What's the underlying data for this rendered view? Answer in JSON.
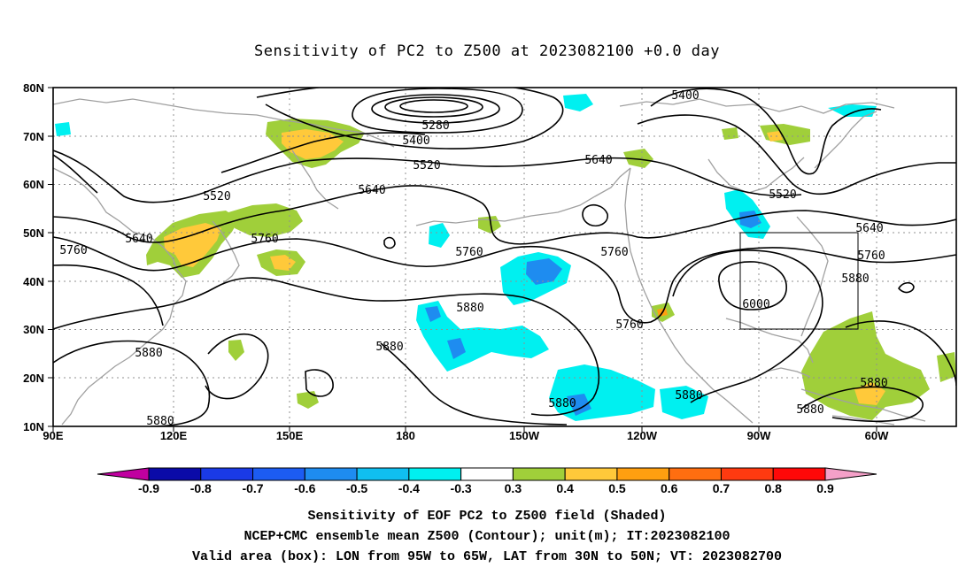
{
  "title": "Sensitivity of PC2 to Z500 at 2023082100 +0.0 day",
  "map": {
    "lat_labels": [
      "80N",
      "70N",
      "60N",
      "50N",
      "40N",
      "30N",
      "20N",
      "10N"
    ],
    "lon_labels": [
      "90E",
      "120E",
      "150E",
      "180",
      "150W",
      "120W",
      "90W",
      "60W"
    ],
    "lon_range": [
      "90E",
      "35W"
    ],
    "lat_range": [
      "10N",
      "80N"
    ],
    "gridlines": true,
    "contour_color": "#000000",
    "coastline_color": "#a0a0a0",
    "contour_labels": [
      "5400",
      "5280",
      "5400",
      "5520",
      "5640",
      "5520",
      "5520",
      "5640",
      "5640",
      "5760",
      "5760",
      "5760",
      "5760",
      "5640",
      "5760",
      "5880",
      "6000",
      "5880",
      "5880",
      "5760",
      "5880",
      "5880",
      "5880",
      "5880",
      "5880",
      "5880"
    ],
    "valid_box": {
      "lon": [
        "95W",
        "65W"
      ],
      "lat": [
        "30N",
        "50N"
      ]
    }
  },
  "colorbar": {
    "labels": [
      "-0.9",
      "-0.8",
      "-0.7",
      "-0.6",
      "-0.5",
      "-0.4",
      "-0.3",
      "0.3",
      "0.4",
      "0.5",
      "0.6",
      "0.7",
      "0.8",
      "0.9"
    ],
    "colors": [
      "#c000a0",
      "#0a0aa8",
      "#1a3ae6",
      "#1c5cf2",
      "#1e8cf0",
      "#10bff0",
      "#00f0f0",
      "#ffffff",
      "#a0cf3a",
      "#ffc93a",
      "#ff9f10",
      "#ff6e10",
      "#ff3a10",
      "#ff0808",
      "#f4a0c8"
    ]
  },
  "shading_colors": {
    "cyan": "#00f0f0",
    "blue": "#10bff0",
    "deep_blue": "#1e8cf0",
    "green": "#a0cf3a",
    "yellow": "#ffc93a",
    "orange": "#ff9f10"
  },
  "captions": [
    "Sensitivity of EOF PC2 to Z500 field (Shaded)",
    "NCEP+CMC ensemble mean Z500 (Contour); unit(m); IT:2023082100",
    "Valid area (box): LON from 95W to 65W, LAT from 30N to 50N; VT: 2023082700"
  ]
}
